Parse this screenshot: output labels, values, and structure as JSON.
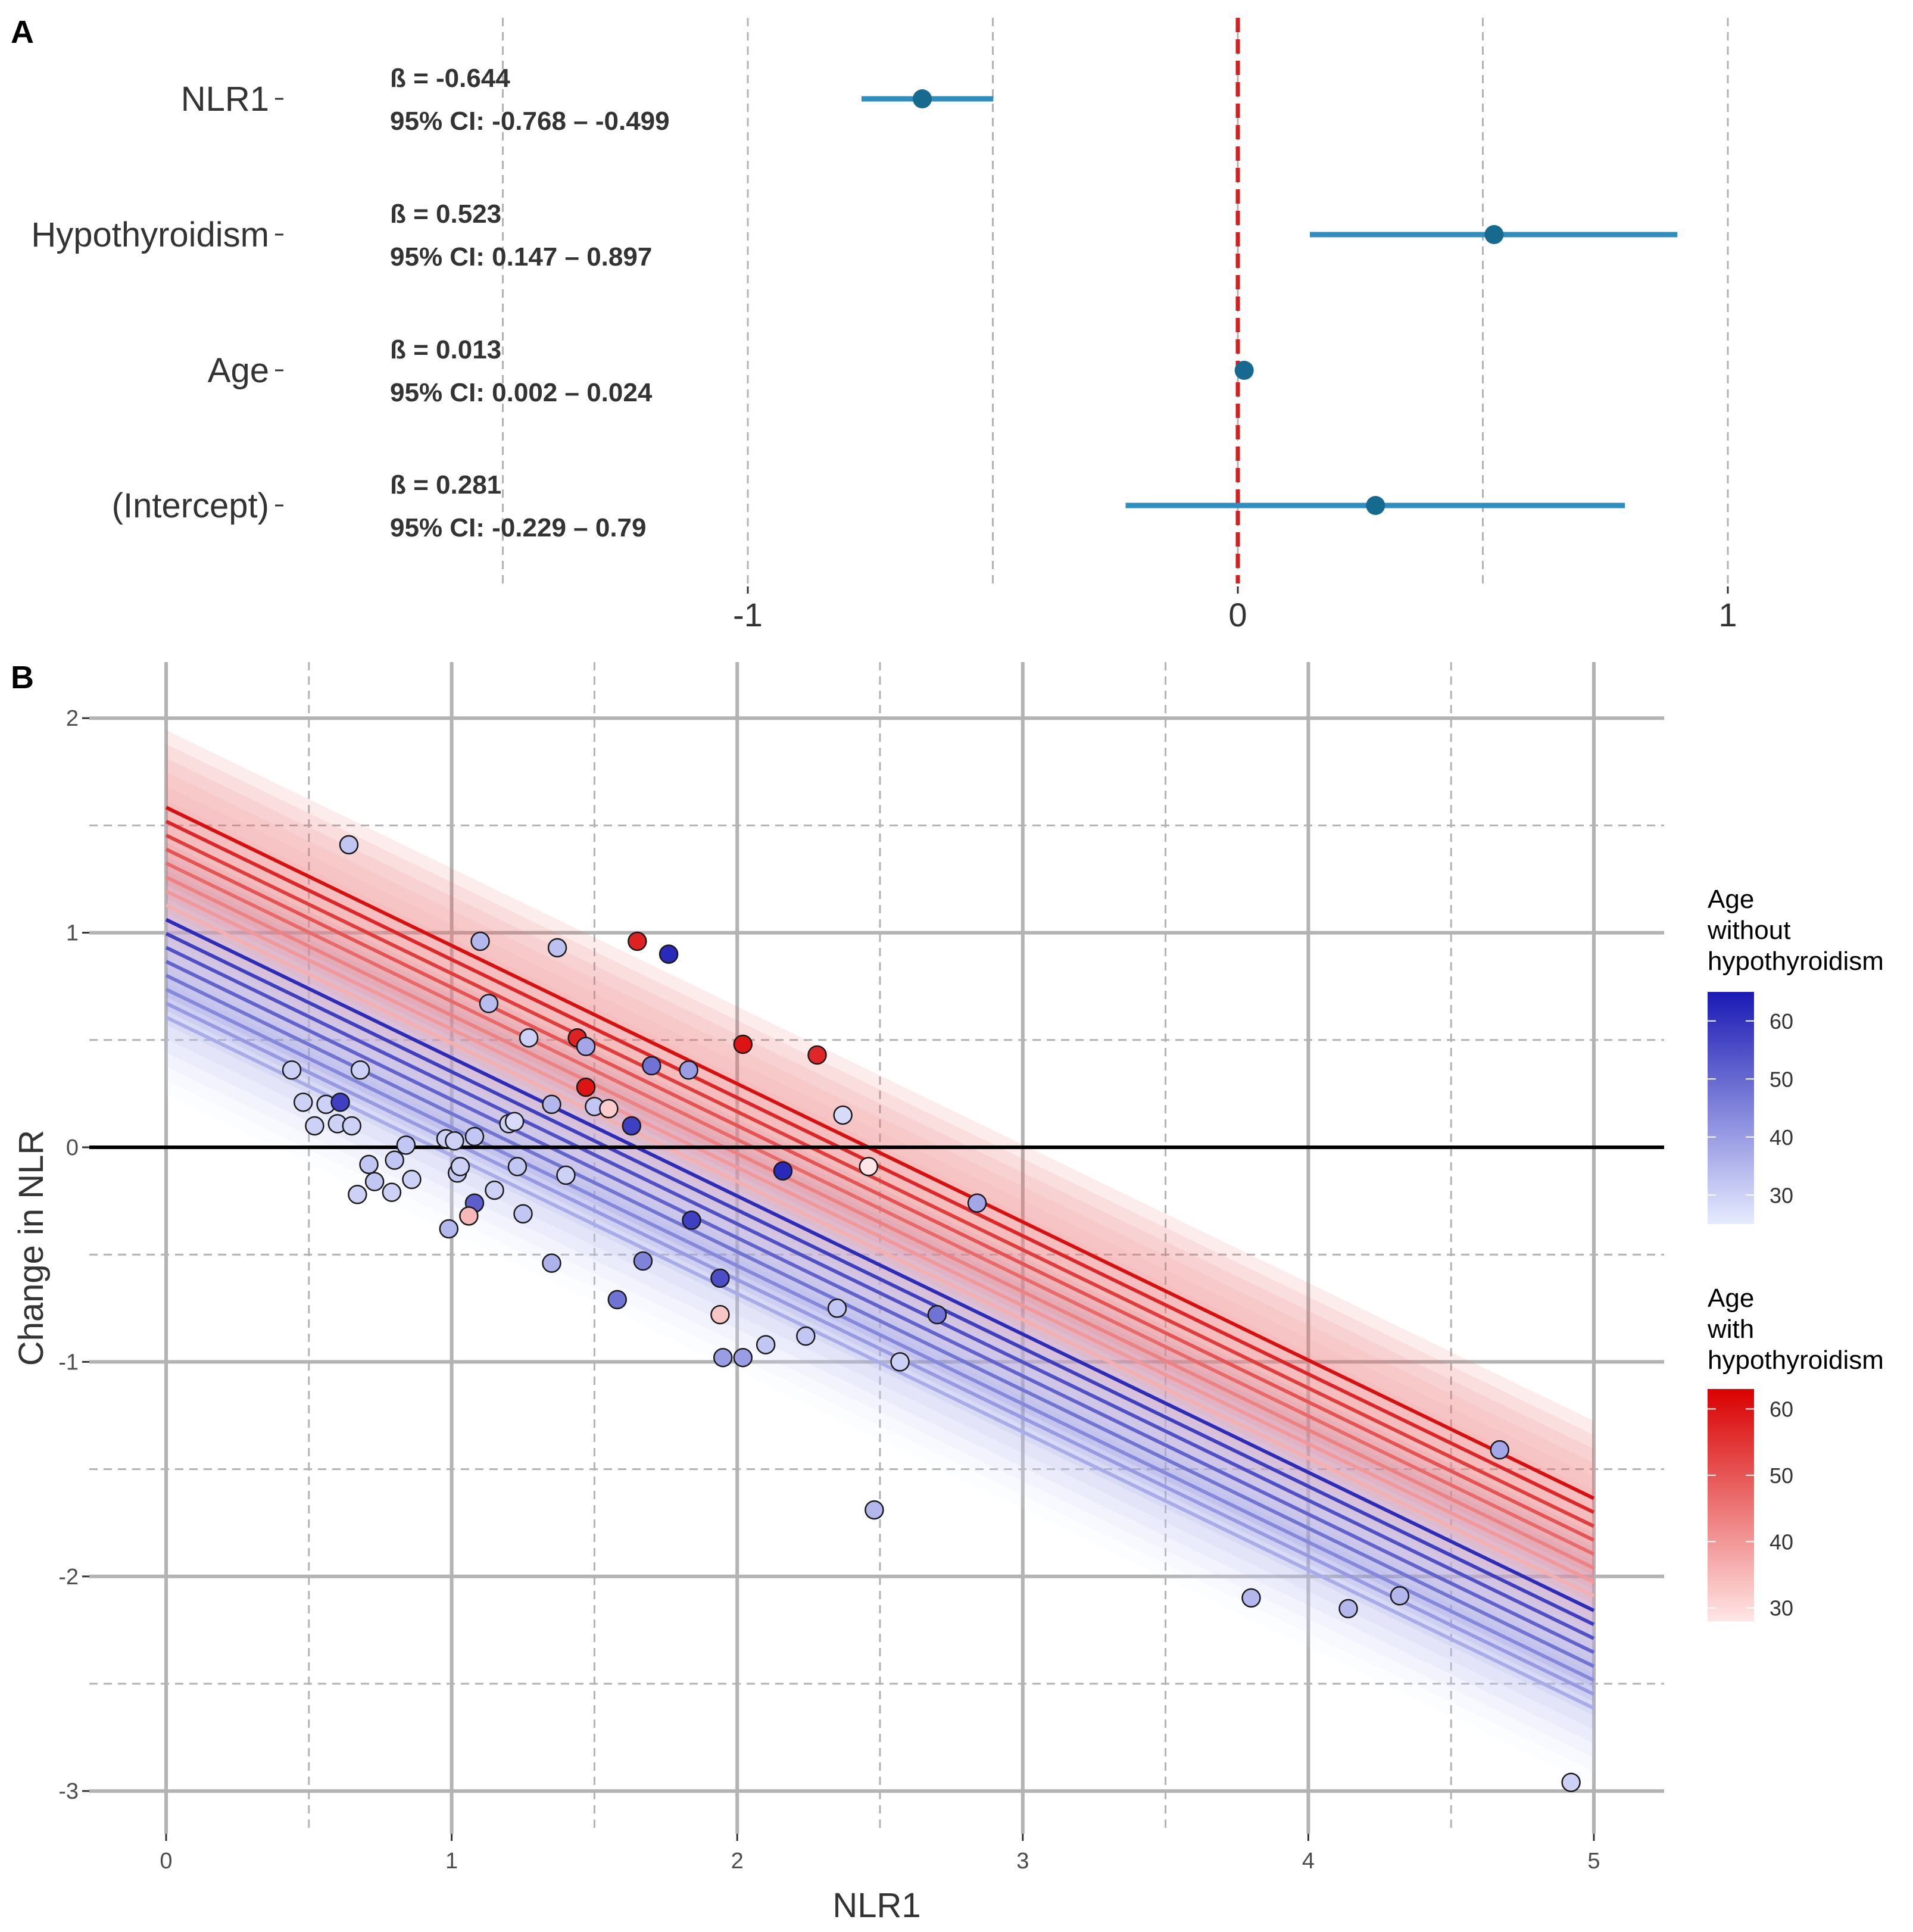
{
  "panel_a_label": "A",
  "panel_b_label": "B",
  "chart_data": [
    {
      "type": "forest",
      "xlim": [
        -2.0,
        1.0
      ],
      "x_ticks": [
        -1,
        0,
        1
      ],
      "reference_line": 0,
      "rows": [
        {
          "term": "NLR1",
          "beta": -0.644,
          "ci_low": -0.768,
          "ci_high": -0.499,
          "beta_text": "ß = -0.644",
          "ci_text": "95% CI: -0.768 – -0.499"
        },
        {
          "term": "Hypothyroidism",
          "beta": 0.523,
          "ci_low": 0.147,
          "ci_high": 0.897,
          "beta_text": "ß = 0.523",
          "ci_text": "95% CI: 0.147 – 0.897"
        },
        {
          "term": "Age",
          "beta": 0.013,
          "ci_low": 0.002,
          "ci_high": 0.024,
          "beta_text": "ß = 0.013",
          "ci_text": "95% CI: 0.002 – 0.024"
        },
        {
          "term": "(Intercept)",
          "beta": 0.281,
          "ci_low": -0.229,
          "ci_high": 0.79,
          "beta_text": "ß = 0.281",
          "ci_text": "95% CI: -0.229 – 0.79"
        }
      ]
    },
    {
      "type": "scatter",
      "xlabel": "NLR1",
      "ylabel": "Change in NLR",
      "xlim": [
        0,
        5
      ],
      "ylim": [
        -3,
        2
      ],
      "x_ticks": [
        0,
        1,
        2,
        3,
        4,
        5
      ],
      "y_ticks": [
        -3,
        -2,
        -1,
        0,
        1,
        2
      ],
      "hline": 0,
      "model": {
        "intercept": 0.281,
        "slope_nlr1": -0.644,
        "hypothyroidism": 0.523,
        "age": 0.013,
        "band_halfwidth": 0.36
      },
      "fit_ages": [
        25,
        30,
        35,
        40,
        45,
        50,
        55,
        60
      ],
      "legends": [
        {
          "title_lines": [
            "Age",
            "without",
            "hypothyroidism"
          ],
          "ticks": [
            30,
            40,
            50,
            60
          ],
          "range": [
            25,
            65
          ],
          "low_color": "#e6ebff",
          "high_color": "#1a1ab4"
        },
        {
          "title_lines": [
            "Age",
            "with",
            "hypothyroidism"
          ],
          "ticks": [
            30,
            40,
            50,
            60
          ],
          "range": [
            28,
            63
          ],
          "low_color": "#ffe6e6",
          "high_color": "#d90000"
        }
      ],
      "points": [
        {
          "x": 0.64,
          "y": 1.41,
          "hypo": false,
          "age": 32
        },
        {
          "x": 1.1,
          "y": 0.96,
          "hypo": false,
          "age": 35
        },
        {
          "x": 1.37,
          "y": 0.93,
          "hypo": false,
          "age": 33
        },
        {
          "x": 1.65,
          "y": 0.96,
          "hypo": true,
          "age": 58
        },
        {
          "x": 1.76,
          "y": 0.9,
          "hypo": false,
          "age": 62
        },
        {
          "x": 1.13,
          "y": 0.67,
          "hypo": false,
          "age": 34
        },
        {
          "x": 1.27,
          "y": 0.51,
          "hypo": false,
          "age": 30
        },
        {
          "x": 1.44,
          "y": 0.51,
          "hypo": true,
          "age": 58
        },
        {
          "x": 1.47,
          "y": 0.47,
          "hypo": false,
          "age": 38
        },
        {
          "x": 2.02,
          "y": 0.48,
          "hypo": true,
          "age": 60
        },
        {
          "x": 2.28,
          "y": 0.43,
          "hypo": true,
          "age": 57
        },
        {
          "x": 1.7,
          "y": 0.38,
          "hypo": false,
          "age": 48
        },
        {
          "x": 1.83,
          "y": 0.36,
          "hypo": false,
          "age": 40
        },
        {
          "x": 0.44,
          "y": 0.36,
          "hypo": false,
          "age": 30
        },
        {
          "x": 0.68,
          "y": 0.36,
          "hypo": false,
          "age": 30
        },
        {
          "x": 1.47,
          "y": 0.28,
          "hypo": true,
          "age": 60
        },
        {
          "x": 0.48,
          "y": 0.21,
          "hypo": false,
          "age": 30
        },
        {
          "x": 0.56,
          "y": 0.2,
          "hypo": false,
          "age": 30
        },
        {
          "x": 0.61,
          "y": 0.21,
          "hypo": false,
          "age": 58
        },
        {
          "x": 1.35,
          "y": 0.2,
          "hypo": false,
          "age": 35
        },
        {
          "x": 1.5,
          "y": 0.19,
          "hypo": false,
          "age": 32
        },
        {
          "x": 1.55,
          "y": 0.18,
          "hypo": true,
          "age": 32
        },
        {
          "x": 2.37,
          "y": 0.15,
          "hypo": false,
          "age": 28
        },
        {
          "x": 0.52,
          "y": 0.1,
          "hypo": false,
          "age": 30
        },
        {
          "x": 0.6,
          "y": 0.11,
          "hypo": false,
          "age": 30
        },
        {
          "x": 0.65,
          "y": 0.1,
          "hypo": false,
          "age": 30
        },
        {
          "x": 1.2,
          "y": 0.11,
          "hypo": false,
          "age": 30
        },
        {
          "x": 1.22,
          "y": 0.12,
          "hypo": false,
          "age": 28
        },
        {
          "x": 1.63,
          "y": 0.1,
          "hypo": false,
          "age": 58
        },
        {
          "x": 0.84,
          "y": 0.01,
          "hypo": false,
          "age": 32
        },
        {
          "x": 0.98,
          "y": 0.04,
          "hypo": false,
          "age": 30
        },
        {
          "x": 1.01,
          "y": 0.03,
          "hypo": false,
          "age": 30
        },
        {
          "x": 1.08,
          "y": 0.05,
          "hypo": false,
          "age": 32
        },
        {
          "x": 0.71,
          "y": -0.08,
          "hypo": false,
          "age": 32
        },
        {
          "x": 0.8,
          "y": -0.06,
          "hypo": false,
          "age": 32
        },
        {
          "x": 1.02,
          "y": -0.12,
          "hypo": false,
          "age": 32
        },
        {
          "x": 1.03,
          "y": -0.09,
          "hypo": false,
          "age": 30
        },
        {
          "x": 1.23,
          "y": -0.09,
          "hypo": false,
          "age": 32
        },
        {
          "x": 1.4,
          "y": -0.13,
          "hypo": false,
          "age": 30
        },
        {
          "x": 2.16,
          "y": -0.11,
          "hypo": false,
          "age": 62
        },
        {
          "x": 2.46,
          "y": -0.09,
          "hypo": true,
          "age": 28
        },
        {
          "x": 0.73,
          "y": -0.16,
          "hypo": false,
          "age": 32
        },
        {
          "x": 0.86,
          "y": -0.15,
          "hypo": false,
          "age": 30
        },
        {
          "x": 0.67,
          "y": -0.22,
          "hypo": false,
          "age": 30
        },
        {
          "x": 0.79,
          "y": -0.21,
          "hypo": false,
          "age": 30
        },
        {
          "x": 1.15,
          "y": -0.2,
          "hypo": false,
          "age": 30
        },
        {
          "x": 1.08,
          "y": -0.26,
          "hypo": false,
          "age": 52
        },
        {
          "x": 2.84,
          "y": -0.26,
          "hypo": false,
          "age": 38
        },
        {
          "x": 1.06,
          "y": -0.32,
          "hypo": true,
          "age": 35
        },
        {
          "x": 1.25,
          "y": -0.31,
          "hypo": false,
          "age": 32
        },
        {
          "x": 1.84,
          "y": -0.34,
          "hypo": false,
          "age": 58
        },
        {
          "x": 0.99,
          "y": -0.38,
          "hypo": false,
          "age": 35
        },
        {
          "x": 1.35,
          "y": -0.54,
          "hypo": false,
          "age": 36
        },
        {
          "x": 1.67,
          "y": -0.53,
          "hypo": false,
          "age": 45
        },
        {
          "x": 1.94,
          "y": -0.61,
          "hypo": false,
          "age": 55
        },
        {
          "x": 1.58,
          "y": -0.71,
          "hypo": false,
          "age": 48
        },
        {
          "x": 1.94,
          "y": -0.78,
          "hypo": true,
          "age": 33
        },
        {
          "x": 2.35,
          "y": -0.75,
          "hypo": false,
          "age": 32
        },
        {
          "x": 2.7,
          "y": -0.78,
          "hypo": false,
          "age": 48
        },
        {
          "x": 2.1,
          "y": -0.92,
          "hypo": false,
          "age": 32
        },
        {
          "x": 2.24,
          "y": -0.88,
          "hypo": false,
          "age": 32
        },
        {
          "x": 1.95,
          "y": -0.98,
          "hypo": false,
          "age": 40
        },
        {
          "x": 2.02,
          "y": -0.98,
          "hypo": false,
          "age": 40
        },
        {
          "x": 2.57,
          "y": -1.0,
          "hypo": false,
          "age": 30
        },
        {
          "x": 2.48,
          "y": -1.69,
          "hypo": false,
          "age": 35
        },
        {
          "x": 4.67,
          "y": -1.41,
          "hypo": false,
          "age": 38
        },
        {
          "x": 3.8,
          "y": -2.1,
          "hypo": false,
          "age": 35
        },
        {
          "x": 4.14,
          "y": -2.15,
          "hypo": false,
          "age": 35
        },
        {
          "x": 4.32,
          "y": -2.09,
          "hypo": false,
          "age": 35
        },
        {
          "x": 4.92,
          "y": -2.96,
          "hypo": false,
          "age": 30
        }
      ]
    }
  ]
}
